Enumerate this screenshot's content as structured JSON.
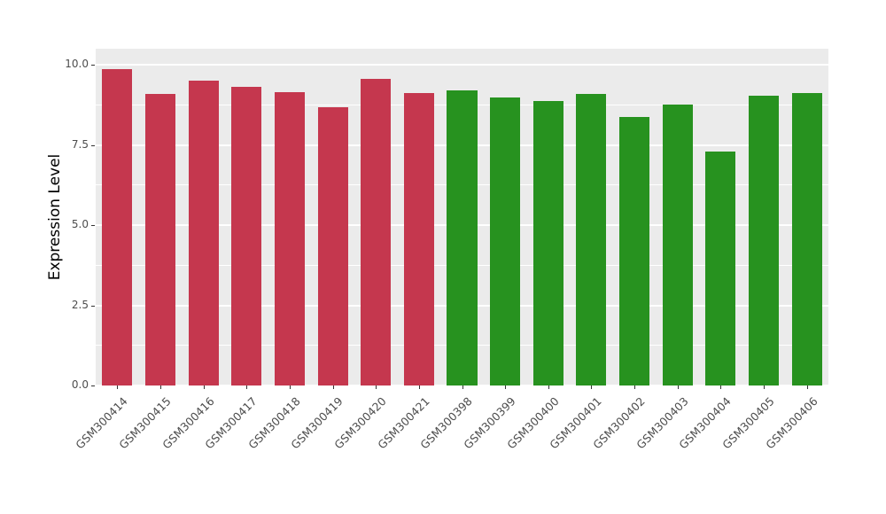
{
  "chart_data": {
    "type": "bar",
    "title": "",
    "xlabel": "",
    "ylabel": "Expression Level",
    "ylim": [
      0,
      10.5
    ],
    "yticks": [
      0.0,
      2.5,
      5.0,
      7.5,
      10.0
    ],
    "ytick_labels": [
      "0.0",
      "2.5",
      "5.0",
      "7.5",
      "10.0"
    ],
    "minor_ticks": [
      1.25,
      3.75,
      6.25,
      8.75
    ],
    "grid": true,
    "legend_position": "none",
    "panel_background": "#EBEBEB",
    "grid_color": "#FFFFFF",
    "colors": {
      "red": "#C5374E",
      "green": "#27921F"
    },
    "categories": [
      "GSM300414",
      "GSM300415",
      "GSM300416",
      "GSM300417",
      "GSM300418",
      "GSM300419",
      "GSM300420",
      "GSM300421",
      "GSM300398",
      "GSM300399",
      "GSM300400",
      "GSM300401",
      "GSM300402",
      "GSM300403",
      "GSM300404",
      "GSM300405",
      "GSM300406"
    ],
    "values": [
      9.86,
      9.09,
      9.5,
      9.31,
      9.14,
      8.67,
      9.56,
      9.12,
      9.2,
      8.98,
      8.87,
      9.09,
      8.37,
      8.76,
      7.29,
      9.03,
      9.12
    ],
    "bar_groups": [
      "red",
      "red",
      "red",
      "red",
      "red",
      "red",
      "red",
      "red",
      "green",
      "green",
      "green",
      "green",
      "green",
      "green",
      "green",
      "green",
      "green"
    ]
  }
}
